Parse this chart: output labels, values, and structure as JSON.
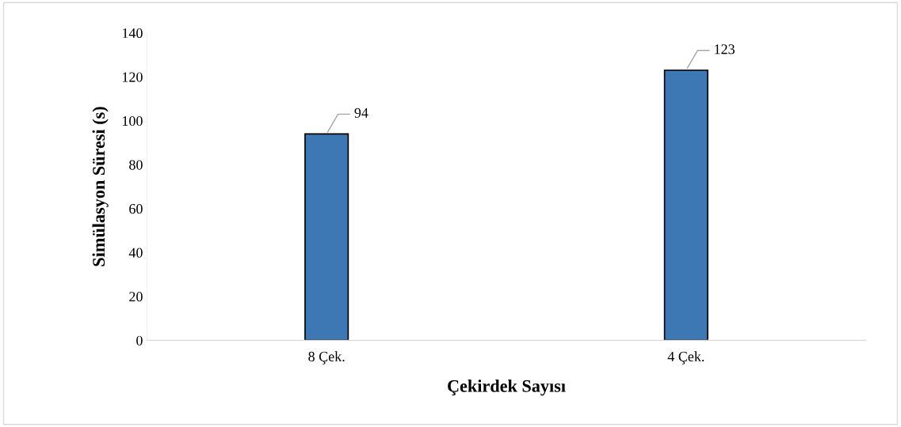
{
  "chart_data": {
    "type": "bar",
    "xlabel": "Çekirdek Sayısı",
    "ylabel": "Simülasyon Süresi (s)",
    "categories": [
      "8 Çek.",
      "4 Çek."
    ],
    "values": [
      94,
      123
    ],
    "color": "#3d78b4",
    "ylim": [
      0,
      140
    ],
    "yticks": [
      0,
      20,
      40,
      60,
      80,
      100,
      120,
      140
    ],
    "grid": false,
    "data_labels": true
  }
}
